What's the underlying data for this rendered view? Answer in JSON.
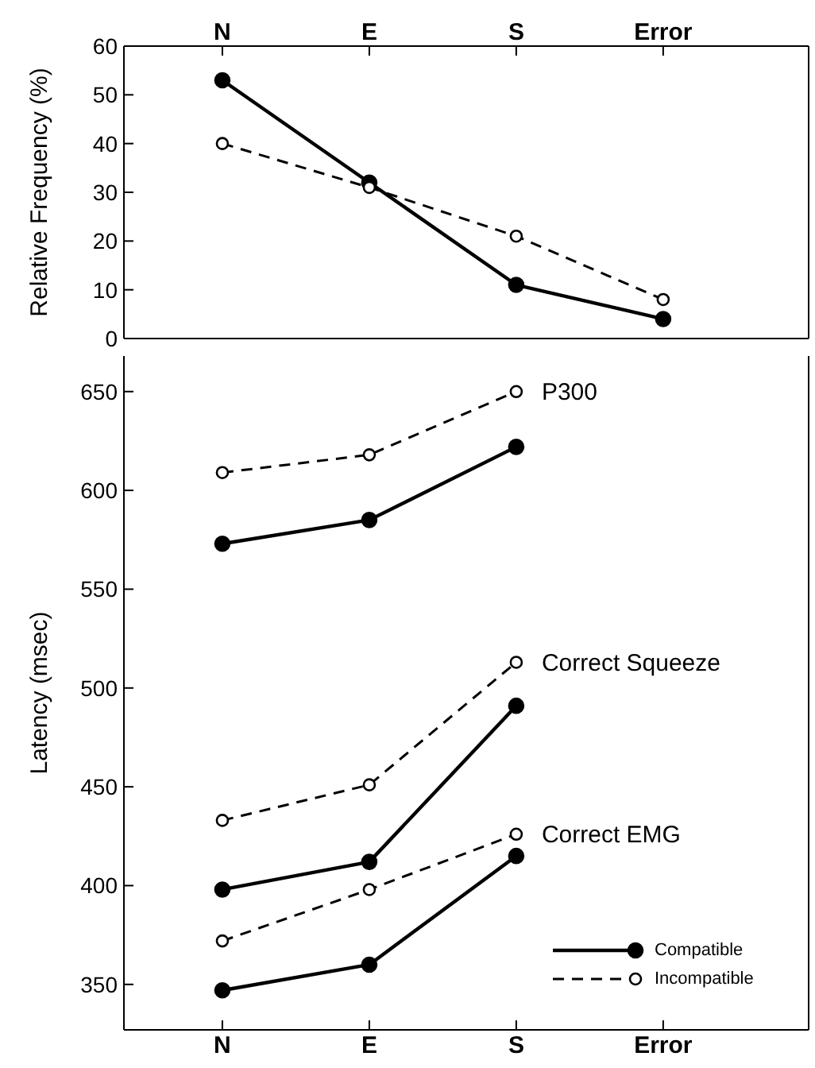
{
  "chart_data": [
    {
      "type": "line",
      "categories": [
        "N",
        "E",
        "S",
        "Error"
      ],
      "ylabel": "Relative Frequency (%)",
      "ylim": [
        0,
        60
      ],
      "yticks": [
        0,
        10,
        20,
        30,
        40,
        50,
        60
      ],
      "legend": false,
      "marker": "circle",
      "series": [
        {
          "color": "#000000",
          "line_style": "solid",
          "values": [
            53,
            32,
            11,
            4
          ]
        },
        {
          "color": "#000000",
          "line_style": "dashed",
          "values": [
            40,
            31,
            21,
            8
          ]
        }
      ]
    },
    {
      "type": "line",
      "categories": [
        "N",
        "E",
        "S",
        "Error"
      ],
      "ylabel": "Latency (msec)",
      "ylim": [
        327,
        668
      ],
      "yticks": [
        350,
        400,
        450,
        500,
        550,
        600,
        650
      ],
      "legend": "bottom right",
      "marker": "circle",
      "series": [
        {
          "name": "Compatible",
          "color": "#000000",
          "line_style": "solid",
          "values": [
            573,
            585,
            622,
            null
          ]
        },
        {
          "name": "Incompatible",
          "color": "#000000",
          "line_style": "dashed",
          "values": [
            609,
            618,
            650,
            null
          ]
        },
        {
          "color": "#000000",
          "line_style": "solid",
          "values": [
            398,
            412,
            491,
            null
          ]
        },
        {
          "color": "#000000",
          "line_style": "dashed",
          "values": [
            433,
            451,
            513,
            null
          ]
        },
        {
          "color": "#000000",
          "line_style": "solid",
          "values": [
            347,
            360,
            415,
            null
          ]
        },
        {
          "color": "#000000",
          "line_style": "dashed",
          "values": [
            372,
            398,
            426,
            null
          ]
        }
      ],
      "annotations": [
        "P300",
        "Correct Squeeze",
        "Correct EMG"
      ]
    }
  ]
}
